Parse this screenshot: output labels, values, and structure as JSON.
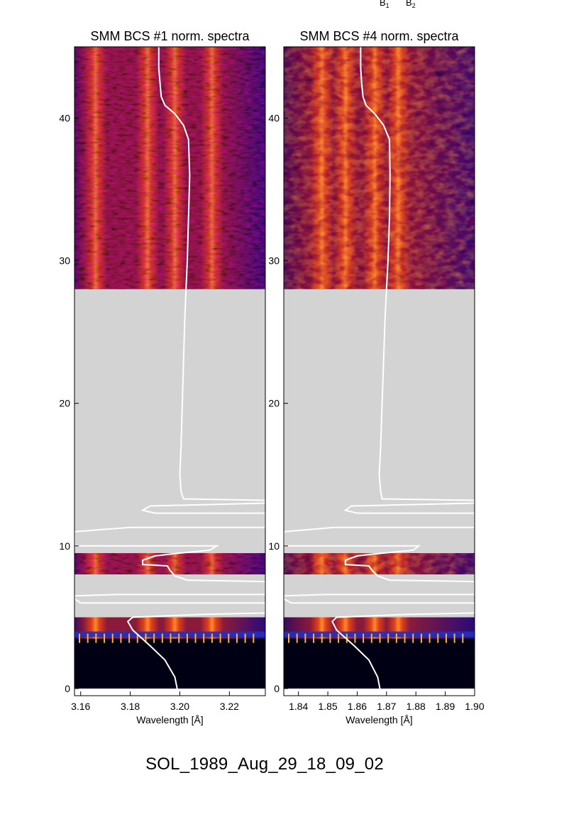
{
  "header": {
    "b1": "B",
    "b1_sub": "1",
    "b2": "B",
    "b2_sub": "2"
  },
  "figure_title": "SOL_1989_Aug_29_18_09_02",
  "chart_data": [
    {
      "type": "heatmap",
      "title": "SMM BCS #1 norm. spectra",
      "xlabel": "Wavelength [Å]",
      "ylabel": "",
      "xlim": [
        3.1575,
        3.2345
      ],
      "ylim": [
        -0.5,
        45
      ],
      "xticks": [
        3.16,
        3.18,
        3.2,
        3.22
      ],
      "xtick_labels": [
        "3.16",
        "3.18",
        "3.20",
        "3.22"
      ],
      "yticks": [
        0,
        10,
        20,
        30,
        40
      ],
      "ytick_labels": [
        "0",
        "10",
        "20",
        "30",
        "40"
      ],
      "colormap": "red-temperature (black-blue-red-orange-yellow)",
      "gap_color": "#d3d3d3",
      "data_intervals": [
        [
          0,
          5
        ],
        [
          8,
          9.5
        ],
        [
          28,
          45
        ]
      ],
      "gap_intervals": [
        [
          5,
          8
        ],
        [
          9.5,
          28
        ]
      ],
      "bright_lines": [
        3.166,
        3.187,
        3.198,
        3.213
      ],
      "light_curve": {
        "color": "#ffffff",
        "points": [
          [
            3.1995,
            -0.5
          ],
          [
            3.198,
            0.8
          ],
          [
            3.194,
            2.0
          ],
          [
            3.188,
            3.0
          ],
          [
            3.181,
            4.1
          ],
          [
            3.179,
            4.7
          ],
          [
            3.181,
            5.0
          ],
          [
            3.209,
            5.2
          ],
          [
            3.2345,
            5.3
          ],
          [
            3.2345,
            6.0
          ],
          [
            3.16,
            6.0
          ],
          [
            3.1575,
            6.3
          ],
          [
            3.1575,
            6.5
          ],
          [
            3.175,
            6.6
          ],
          [
            3.2345,
            6.6
          ],
          [
            3.2345,
            7.5
          ],
          [
            3.203,
            7.6
          ],
          [
            3.198,
            7.9
          ],
          [
            3.196,
            8.3
          ],
          [
            3.195,
            8.6
          ],
          [
            3.185,
            8.7
          ],
          [
            3.185,
            9.0
          ],
          [
            3.19,
            9.3
          ],
          [
            3.2,
            9.5
          ],
          [
            3.212,
            9.7
          ],
          [
            3.215,
            10.0
          ],
          [
            3.1575,
            10.0
          ],
          [
            3.1575,
            10.5
          ],
          [
            3.1575,
            11.0
          ],
          [
            3.18,
            11.3
          ],
          [
            3.2345,
            11.3
          ],
          [
            3.2345,
            11.9
          ],
          [
            3.2345,
            12.3
          ],
          [
            3.19,
            12.3
          ],
          [
            3.185,
            12.5
          ],
          [
            3.188,
            12.8
          ],
          [
            3.2345,
            13.0
          ],
          [
            3.2345,
            13.2
          ],
          [
            3.2015,
            13.3
          ],
          [
            3.2005,
            13.8
          ],
          [
            3.2,
            15
          ],
          [
            3.2005,
            17
          ],
          [
            3.201,
            20
          ],
          [
            3.2015,
            23
          ],
          [
            3.202,
            26
          ],
          [
            3.2025,
            28
          ],
          [
            3.203,
            30
          ],
          [
            3.2035,
            33
          ],
          [
            3.204,
            36
          ],
          [
            3.2035,
            38.5
          ],
          [
            3.2015,
            39.5
          ],
          [
            3.198,
            40.3
          ],
          [
            3.194,
            40.9
          ],
          [
            3.1925,
            41.5
          ],
          [
            3.192,
            42.5
          ],
          [
            3.1915,
            43.5
          ],
          [
            3.1915,
            45
          ]
        ]
      }
    },
    {
      "type": "heatmap",
      "title": "SMM BCS #4 norm. spectra",
      "xlabel": "Wavelength [Å]",
      "ylabel": "",
      "xlim": [
        1.835,
        1.9
      ],
      "ylim": [
        -0.5,
        45
      ],
      "xticks": [
        1.84,
        1.85,
        1.86,
        1.87,
        1.88,
        1.89,
        1.9
      ],
      "xtick_labels": [
        "1.84",
        "1.85",
        "1.86",
        "1.87",
        "1.88",
        "1.89",
        "1.90"
      ],
      "yticks": [
        0,
        10,
        20,
        30,
        40
      ],
      "ytick_labels": [
        "0",
        "10",
        "20",
        "30",
        "40"
      ],
      "colormap": "red-temperature (black-blue-red-orange-yellow)",
      "gap_color": "#d3d3d3",
      "data_intervals": [
        [
          0,
          5
        ],
        [
          8,
          9.5
        ],
        [
          28,
          45
        ]
      ],
      "gap_intervals": [
        [
          5,
          8
        ],
        [
          9.5,
          28
        ]
      ],
      "bright_lines": [
        1.848,
        1.856,
        1.866,
        1.874
      ],
      "light_curve": {
        "color": "#ffffff",
        "points": [
          [
            1.8682,
            -0.5
          ],
          [
            1.867,
            0.8
          ],
          [
            1.864,
            2.0
          ],
          [
            1.859,
            3.0
          ],
          [
            1.853,
            4.1
          ],
          [
            1.8515,
            4.7
          ],
          [
            1.853,
            5.0
          ],
          [
            1.877,
            5.2
          ],
          [
            1.9,
            5.3
          ],
          [
            1.9,
            6.0
          ],
          [
            1.8375,
            6.0
          ],
          [
            1.835,
            6.3
          ],
          [
            1.835,
            6.5
          ],
          [
            1.85,
            6.6
          ],
          [
            1.9,
            6.6
          ],
          [
            1.9,
            7.5
          ],
          [
            1.871,
            7.6
          ],
          [
            1.867,
            7.9
          ],
          [
            1.865,
            8.3
          ],
          [
            1.864,
            8.6
          ],
          [
            1.856,
            8.7
          ],
          [
            1.856,
            9.0
          ],
          [
            1.86,
            9.3
          ],
          [
            1.869,
            9.5
          ],
          [
            1.879,
            9.7
          ],
          [
            1.881,
            10.0
          ],
          [
            1.835,
            10.0
          ],
          [
            1.835,
            10.5
          ],
          [
            1.835,
            11.0
          ],
          [
            1.852,
            11.3
          ],
          [
            1.9,
            11.3
          ],
          [
            1.9,
            11.9
          ],
          [
            1.9,
            12.3
          ],
          [
            1.86,
            12.3
          ],
          [
            1.856,
            12.5
          ],
          [
            1.858,
            12.8
          ],
          [
            1.9,
            13.0
          ],
          [
            1.9,
            13.2
          ],
          [
            1.8685,
            13.3
          ],
          [
            1.868,
            13.8
          ],
          [
            1.8675,
            15
          ],
          [
            1.868,
            17
          ],
          [
            1.8685,
            20
          ],
          [
            1.869,
            23
          ],
          [
            1.8695,
            26
          ],
          [
            1.87,
            28
          ],
          [
            1.8705,
            30
          ],
          [
            1.871,
            33
          ],
          [
            1.8712,
            36
          ],
          [
            1.871,
            38.5
          ],
          [
            1.869,
            39.5
          ],
          [
            1.866,
            40.3
          ],
          [
            1.863,
            40.9
          ],
          [
            1.862,
            41.5
          ],
          [
            1.8615,
            42.5
          ],
          [
            1.8612,
            43.5
          ],
          [
            1.8612,
            45
          ]
        ]
      }
    }
  ]
}
